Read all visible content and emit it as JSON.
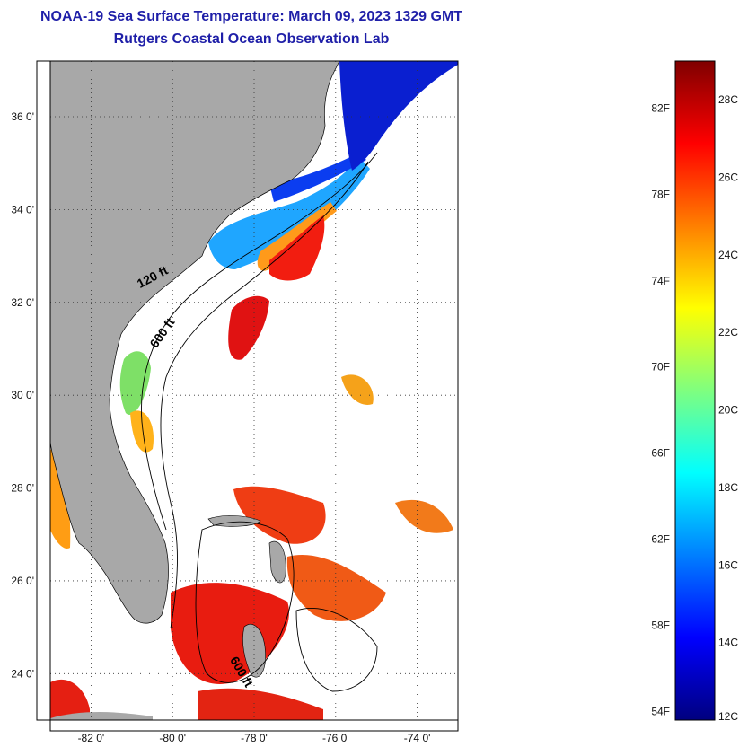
{
  "title": "NOAA-19 Sea Surface Temperature:  March 09, 2023 1329 GMT",
  "subtitle": "Rutgers Coastal Ocean Observation Lab",
  "map": {
    "lat_range": [
      23,
      37.2
    ],
    "lon_range": [
      -83,
      -73
    ],
    "lat_ticks": [
      {
        "value": 24,
        "label": "24 0'"
      },
      {
        "value": 26,
        "label": "26 0'"
      },
      {
        "value": 28,
        "label": "28 0'"
      },
      {
        "value": 30,
        "label": "30 0'"
      },
      {
        "value": 32,
        "label": "32 0'"
      },
      {
        "value": 34,
        "label": "34 0'"
      },
      {
        "value": 36,
        "label": "36 0'"
      }
    ],
    "lon_ticks": [
      {
        "value": -82,
        "label": "-82 0'"
      },
      {
        "value": -80,
        "label": "-80 0'"
      },
      {
        "value": -78,
        "label": "-78 0'"
      },
      {
        "value": -76,
        "label": "-76 0'"
      },
      {
        "value": -74,
        "label": "-74 0'"
      }
    ],
    "grid": "dotted",
    "contour_labels": [
      {
        "text": "120 ft",
        "lon": -80.8,
        "lat": 32.3
      },
      {
        "text": "600 ft",
        "lon": -80.4,
        "lat": 31.0
      },
      {
        "text": "600 ft",
        "lon": -78.6,
        "lat": 24.3
      }
    ],
    "colors": {
      "land": "#a8a8a8",
      "ocean_nodata": "#ffffff",
      "contour": "#000000"
    }
  },
  "colorbar": {
    "range_c": [
      12,
      29
    ],
    "celsius_labels": [
      {
        "value": 12,
        "label": "12C"
      },
      {
        "value": 14,
        "label": "14C"
      },
      {
        "value": 16,
        "label": "16C"
      },
      {
        "value": 18,
        "label": "18C"
      },
      {
        "value": 20,
        "label": "20C"
      },
      {
        "value": 22,
        "label": "22C"
      },
      {
        "value": 24,
        "label": "24C"
      },
      {
        "value": 26,
        "label": "26C"
      },
      {
        "value": 28,
        "label": "28C"
      }
    ],
    "fahrenheit_labels": [
      {
        "value": 12.22,
        "label": "54F"
      },
      {
        "value": 14.44,
        "label": "58F"
      },
      {
        "value": 16.67,
        "label": "62F"
      },
      {
        "value": 18.89,
        "label": "66F"
      },
      {
        "value": 21.11,
        "label": "70F"
      },
      {
        "value": 23.33,
        "label": "74F"
      },
      {
        "value": 25.56,
        "label": "78F"
      },
      {
        "value": 27.78,
        "label": "82F"
      }
    ],
    "stops": [
      "#00007f",
      "#0000ff",
      "#007fff",
      "#00ffff",
      "#7fff7f",
      "#ffff00",
      "#ff7f00",
      "#ff0000",
      "#7f0000"
    ]
  }
}
